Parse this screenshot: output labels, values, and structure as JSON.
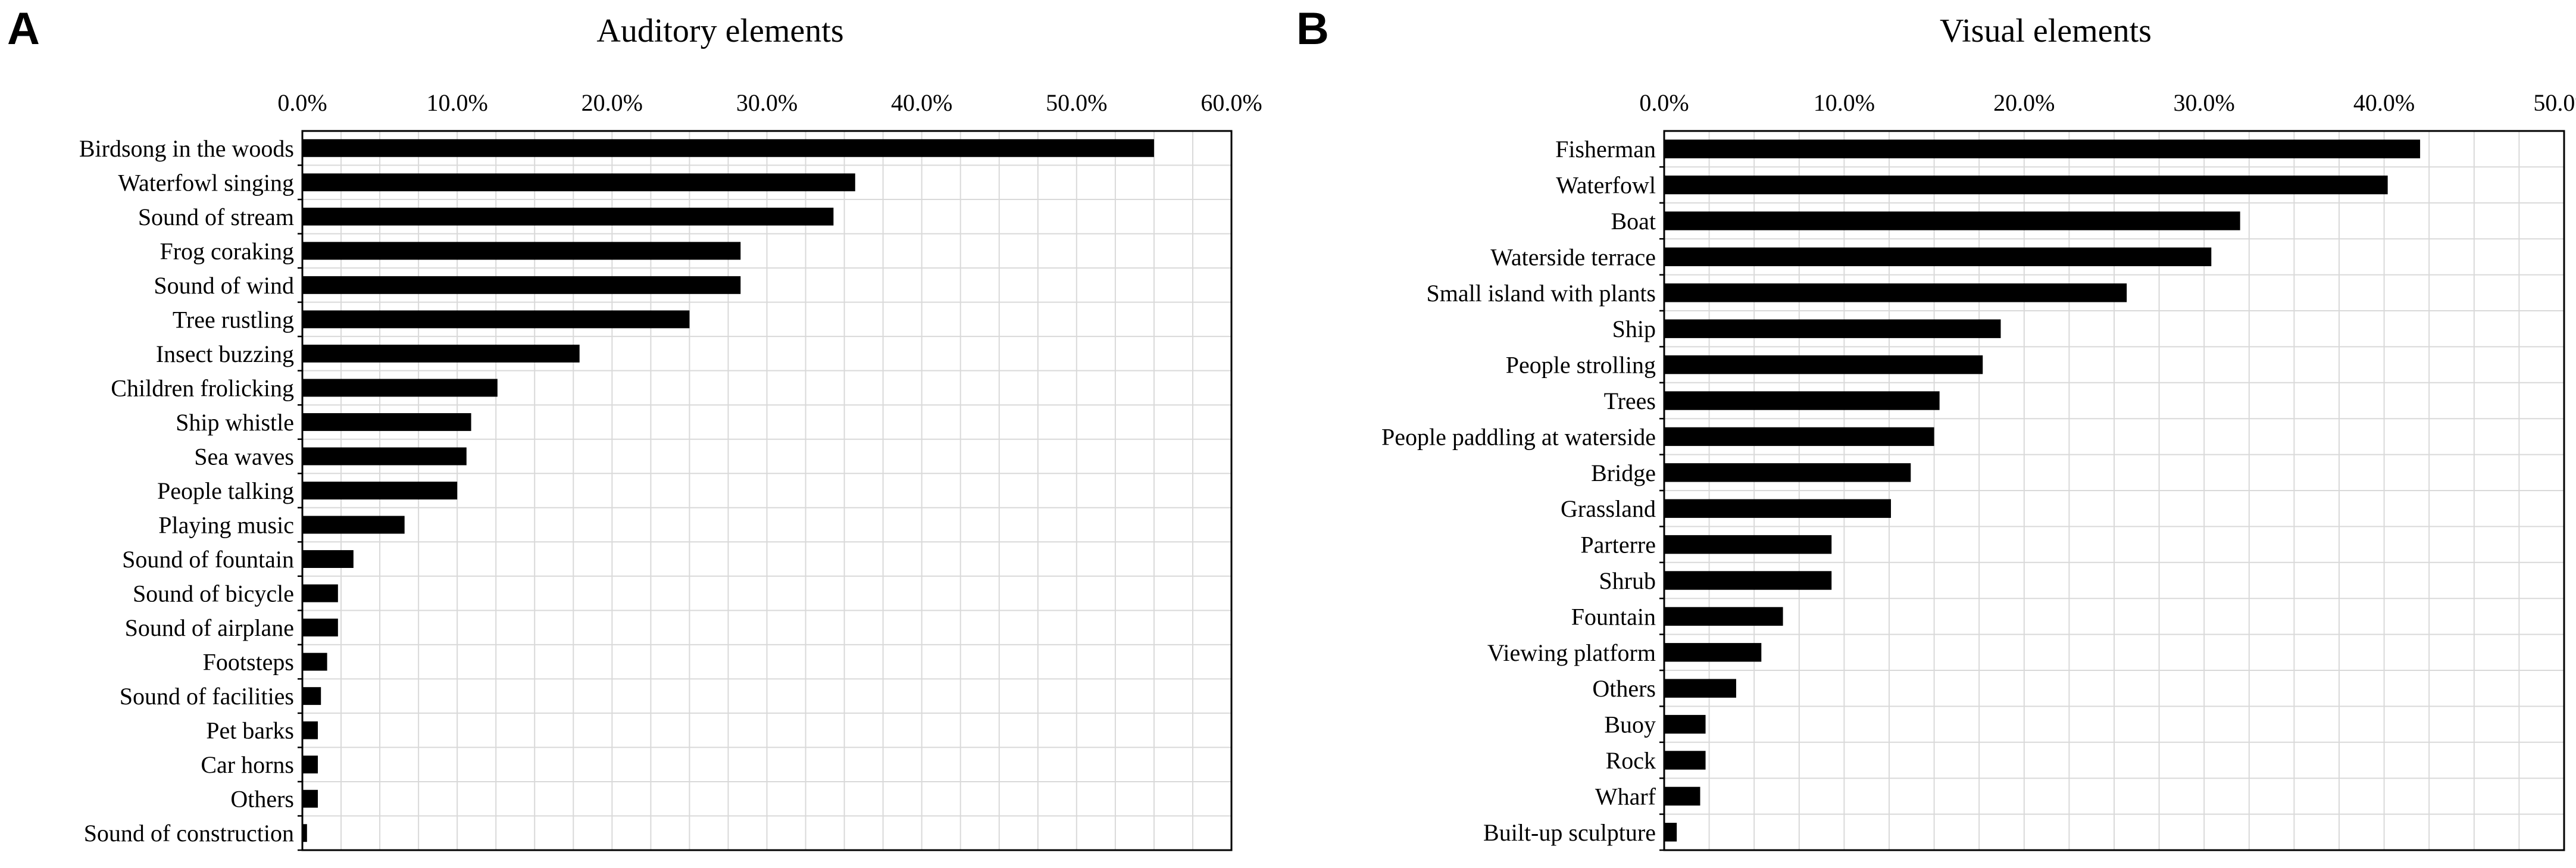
{
  "panels": [
    {
      "letter": "A"
    },
    {
      "letter": "B"
    }
  ],
  "chart_data": [
    {
      "type": "bar",
      "orientation": "horizontal",
      "title": "Auditory elements",
      "xlabel": "",
      "ylabel": "",
      "xlim": [
        0,
        60
      ],
      "ticks": [
        0,
        10,
        20,
        30,
        40,
        50,
        60
      ],
      "tick_labels": [
        "0.0%",
        "10.0%",
        "20.0%",
        "30.0%",
        "40.0%",
        "50.0%",
        "60.0%"
      ],
      "grid": true,
      "color": "#000000",
      "categories": [
        "Birdsong in the woods",
        "Waterfowl singing",
        "Sound of stream",
        "Frog coraking",
        "Sound of wind",
        "Tree rustling",
        "Insect buzzing",
        "Children frolicking",
        "Ship whistle",
        "Sea waves",
        "People talking",
        "Playing music",
        "Sound of fountain",
        "Sound of bicycle",
        "Sound of airplane",
        "Footsteps",
        "Sound of facilities",
        "Pet barks",
        "Car horns",
        "Others",
        "Sound of construction"
      ],
      "values": [
        55.0,
        35.7,
        34.3,
        28.3,
        28.3,
        25.0,
        17.9,
        12.6,
        10.9,
        10.6,
        10.0,
        6.6,
        3.3,
        2.3,
        2.3,
        1.6,
        1.2,
        1.0,
        1.0,
        1.0,
        0.3
      ]
    },
    {
      "type": "bar",
      "orientation": "horizontal",
      "title": "Visual elements",
      "xlabel": "",
      "ylabel": "",
      "xlim": [
        0,
        50
      ],
      "ticks": [
        0,
        10,
        20,
        30,
        40,
        50
      ],
      "tick_labels": [
        "0.0%",
        "10.0%",
        "20.0%",
        "30.0%",
        "40.0%",
        "50.0%"
      ],
      "grid": true,
      "color": "#000000",
      "categories": [
        "Fisherman",
        "Waterfowl",
        "Boat",
        "Waterside terrace",
        "Small island with plants",
        "Ship",
        "People strolling",
        "Trees",
        "People paddling at waterside",
        "Bridge",
        "Grassland",
        "Parterre",
        "Shrub",
        "Fountain",
        "Viewing platform",
        "Others",
        "Buoy",
        "Rock",
        "Wharf",
        "Built-up sculpture"
      ],
      "values": [
        42.0,
        40.2,
        32.0,
        30.4,
        25.7,
        18.7,
        17.7,
        15.3,
        15.0,
        13.7,
        12.6,
        9.3,
        9.3,
        6.6,
        5.4,
        4.0,
        2.3,
        2.3,
        2.0,
        0.7
      ]
    }
  ]
}
